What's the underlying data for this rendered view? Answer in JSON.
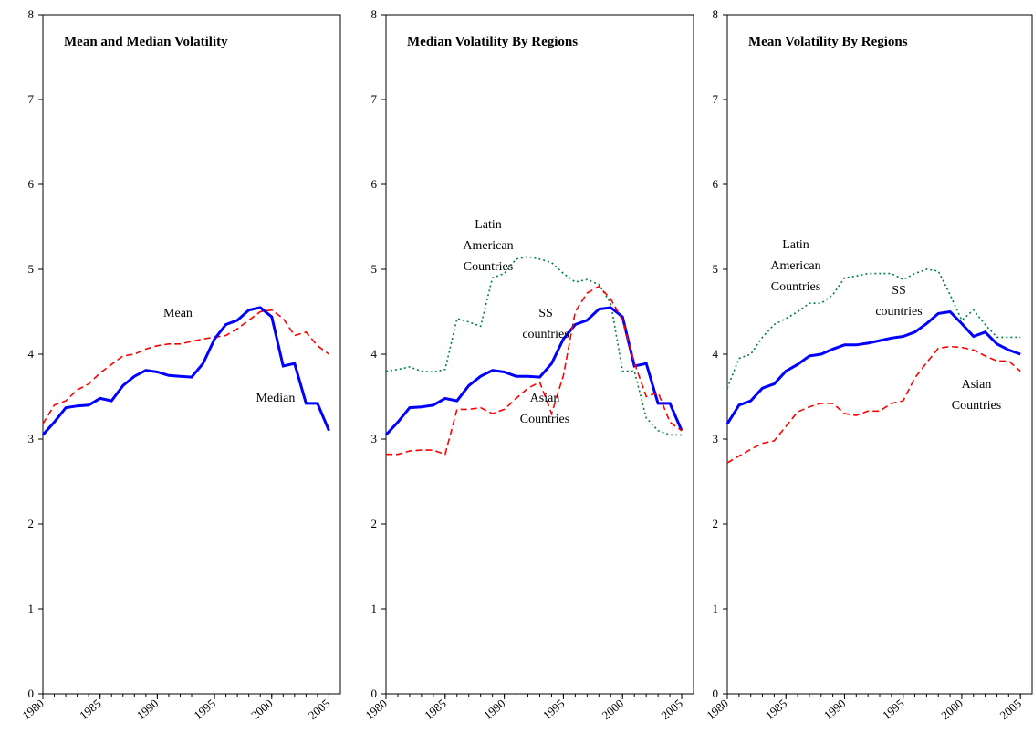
{
  "chart_data": [
    {
      "type": "line",
      "title": "Mean and Median Volatility",
      "x": [
        1980,
        1981,
        1982,
        1983,
        1984,
        1985,
        1986,
        1987,
        1988,
        1989,
        1990,
        1991,
        1992,
        1993,
        1994,
        1995,
        1996,
        1997,
        1998,
        1999,
        2000,
        2001,
        2002,
        2003,
        2004,
        2005
      ],
      "xlim": [
        1980,
        2006
      ],
      "xticks": [
        1980,
        1985,
        1990,
        1995,
        2000,
        2005
      ],
      "ylim": [
        0,
        8
      ],
      "yticks": [
        0,
        1,
        2,
        3,
        4,
        5,
        6,
        7,
        8
      ],
      "series": [
        {
          "name": "Mean",
          "color": "#ff0000",
          "style": "dashed",
          "values": [
            3.18,
            3.4,
            3.45,
            3.58,
            3.65,
            3.78,
            3.88,
            3.98,
            4.0,
            4.06,
            4.1,
            4.12,
            4.12,
            4.15,
            4.18,
            4.2,
            4.22,
            4.3,
            4.4,
            4.5,
            4.52,
            4.42,
            4.22,
            4.26,
            4.1,
            4.0
          ]
        },
        {
          "name": "Median",
          "color": "#0000ff",
          "style": "solid",
          "values": [
            3.05,
            3.2,
            3.37,
            3.39,
            3.4,
            3.48,
            3.45,
            3.63,
            3.74,
            3.81,
            3.79,
            3.75,
            3.74,
            3.73,
            3.89,
            4.18,
            4.35,
            4.4,
            4.52,
            4.55,
            4.44,
            3.86,
            3.89,
            3.42,
            3.42,
            3.1
          ]
        }
      ]
    },
    {
      "type": "line",
      "title": "Median Volatility By Regions",
      "x": [
        1980,
        1981,
        1982,
        1983,
        1984,
        1985,
        1986,
        1987,
        1988,
        1989,
        1990,
        1991,
        1992,
        1993,
        1994,
        1995,
        1996,
        1997,
        1998,
        1999,
        2000,
        2001,
        2002,
        2003,
        2004,
        2005
      ],
      "xlim": [
        1980,
        2006
      ],
      "xticks": [
        1980,
        1985,
        1990,
        1995,
        2000,
        2005
      ],
      "ylim": [
        0,
        8
      ],
      "yticks": [
        0,
        1,
        2,
        3,
        4,
        5,
        6,
        7,
        8
      ],
      "series": [
        {
          "name": "Latin American Countries",
          "color": "#008040",
          "style": "dotted",
          "values": [
            3.8,
            3.82,
            3.85,
            3.8,
            3.79,
            3.82,
            4.42,
            4.38,
            4.33,
            4.9,
            4.95,
            5.12,
            5.15,
            5.12,
            5.08,
            4.95,
            4.85,
            4.88,
            4.82,
            4.6,
            3.8,
            3.8,
            3.25,
            3.1,
            3.05,
            3.05
          ]
        },
        {
          "name": "SS countries",
          "color": "#0000ff",
          "style": "solid",
          "values": [
            3.05,
            3.2,
            3.37,
            3.38,
            3.4,
            3.48,
            3.45,
            3.63,
            3.74,
            3.81,
            3.79,
            3.74,
            3.74,
            3.73,
            3.89,
            4.18,
            4.35,
            4.4,
            4.53,
            4.55,
            4.44,
            3.86,
            3.89,
            3.42,
            3.42,
            3.1
          ]
        },
        {
          "name": "Asian Countries",
          "color": "#ff0000",
          "style": "dashed",
          "values": [
            2.82,
            2.82,
            2.86,
            2.87,
            2.87,
            2.82,
            3.35,
            3.35,
            3.37,
            3.3,
            3.35,
            3.48,
            3.6,
            3.67,
            3.3,
            3.75,
            4.5,
            4.72,
            4.8,
            4.65,
            4.4,
            3.9,
            3.5,
            3.55,
            3.2,
            3.1
          ]
        }
      ]
    },
    {
      "type": "line",
      "title": "Mean Volatility By Regions",
      "x": [
        1980,
        1981,
        1982,
        1983,
        1984,
        1985,
        1986,
        1987,
        1988,
        1989,
        1990,
        1991,
        1992,
        1993,
        1994,
        1995,
        1996,
        1997,
        1998,
        1999,
        2000,
        2001,
        2002,
        2003,
        2004,
        2005
      ],
      "xlim": [
        1980,
        2006
      ],
      "xticks": [
        1980,
        1985,
        1990,
        1995,
        2000,
        2005
      ],
      "ylim": [
        0,
        8
      ],
      "yticks": [
        0,
        1,
        2,
        3,
        4,
        5,
        6,
        7,
        8
      ],
      "series": [
        {
          "name": "Latin American Countries",
          "color": "#008040",
          "style": "dotted",
          "values": [
            3.6,
            3.95,
            4.0,
            4.2,
            4.35,
            4.42,
            4.5,
            4.6,
            4.6,
            4.7,
            4.9,
            4.92,
            4.95,
            4.95,
            4.95,
            4.88,
            4.95,
            5.0,
            4.98,
            4.7,
            4.4,
            4.52,
            4.35,
            4.2,
            4.2,
            4.2
          ]
        },
        {
          "name": "SS countries",
          "color": "#0000ff",
          "style": "solid",
          "values": [
            3.18,
            3.4,
            3.45,
            3.6,
            3.65,
            3.8,
            3.88,
            3.98,
            4.0,
            4.06,
            4.11,
            4.11,
            4.13,
            4.16,
            4.19,
            4.21,
            4.26,
            4.36,
            4.48,
            4.5,
            4.36,
            4.21,
            4.26,
            4.12,
            4.05,
            4.0
          ]
        },
        {
          "name": "Asian Countries",
          "color": "#ff0000",
          "style": "dashed",
          "values": [
            2.72,
            2.8,
            2.88,
            2.95,
            2.98,
            3.15,
            3.32,
            3.38,
            3.42,
            3.42,
            3.3,
            3.28,
            3.33,
            3.33,
            3.42,
            3.45,
            3.72,
            3.9,
            4.07,
            4.09,
            4.08,
            4.05,
            3.98,
            3.92,
            3.92,
            3.8
          ]
        }
      ]
    }
  ]
}
